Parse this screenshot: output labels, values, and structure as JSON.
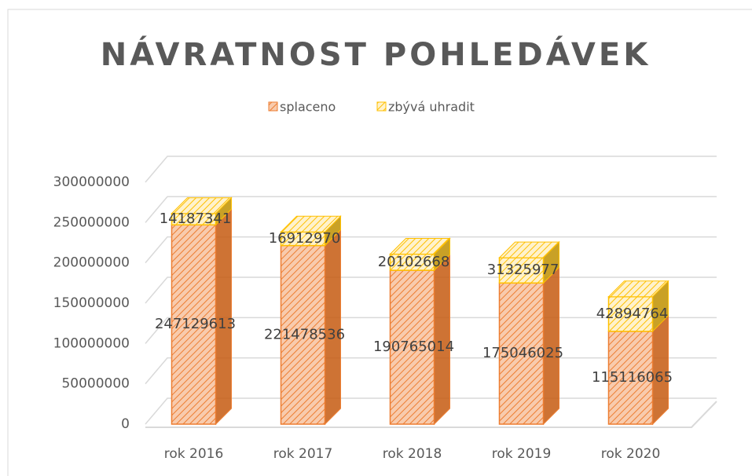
{
  "chart_data": {
    "type": "bar3d_stacked",
    "title": "NÁVRATNOST POHLEDÁVEK",
    "categories": [
      "rok 2016",
      "rok 2017",
      "rok 2018",
      "rok 2019",
      "rok 2020"
    ],
    "series": [
      {
        "name": "splaceno",
        "color": "#ed7d31",
        "values": [
          247129613,
          221478536,
          190765014,
          175046025,
          115116065
        ]
      },
      {
        "name": "zbývá uhradit",
        "color": "#ffc000",
        "values": [
          14187341,
          16912970,
          20102668,
          31325977,
          42894764
        ]
      }
    ],
    "ylim": [
      0,
      300000000
    ],
    "yticks": [
      0,
      50000000,
      100000000,
      150000000,
      200000000,
      250000000,
      300000000
    ],
    "grid": true,
    "legend": "top"
  }
}
